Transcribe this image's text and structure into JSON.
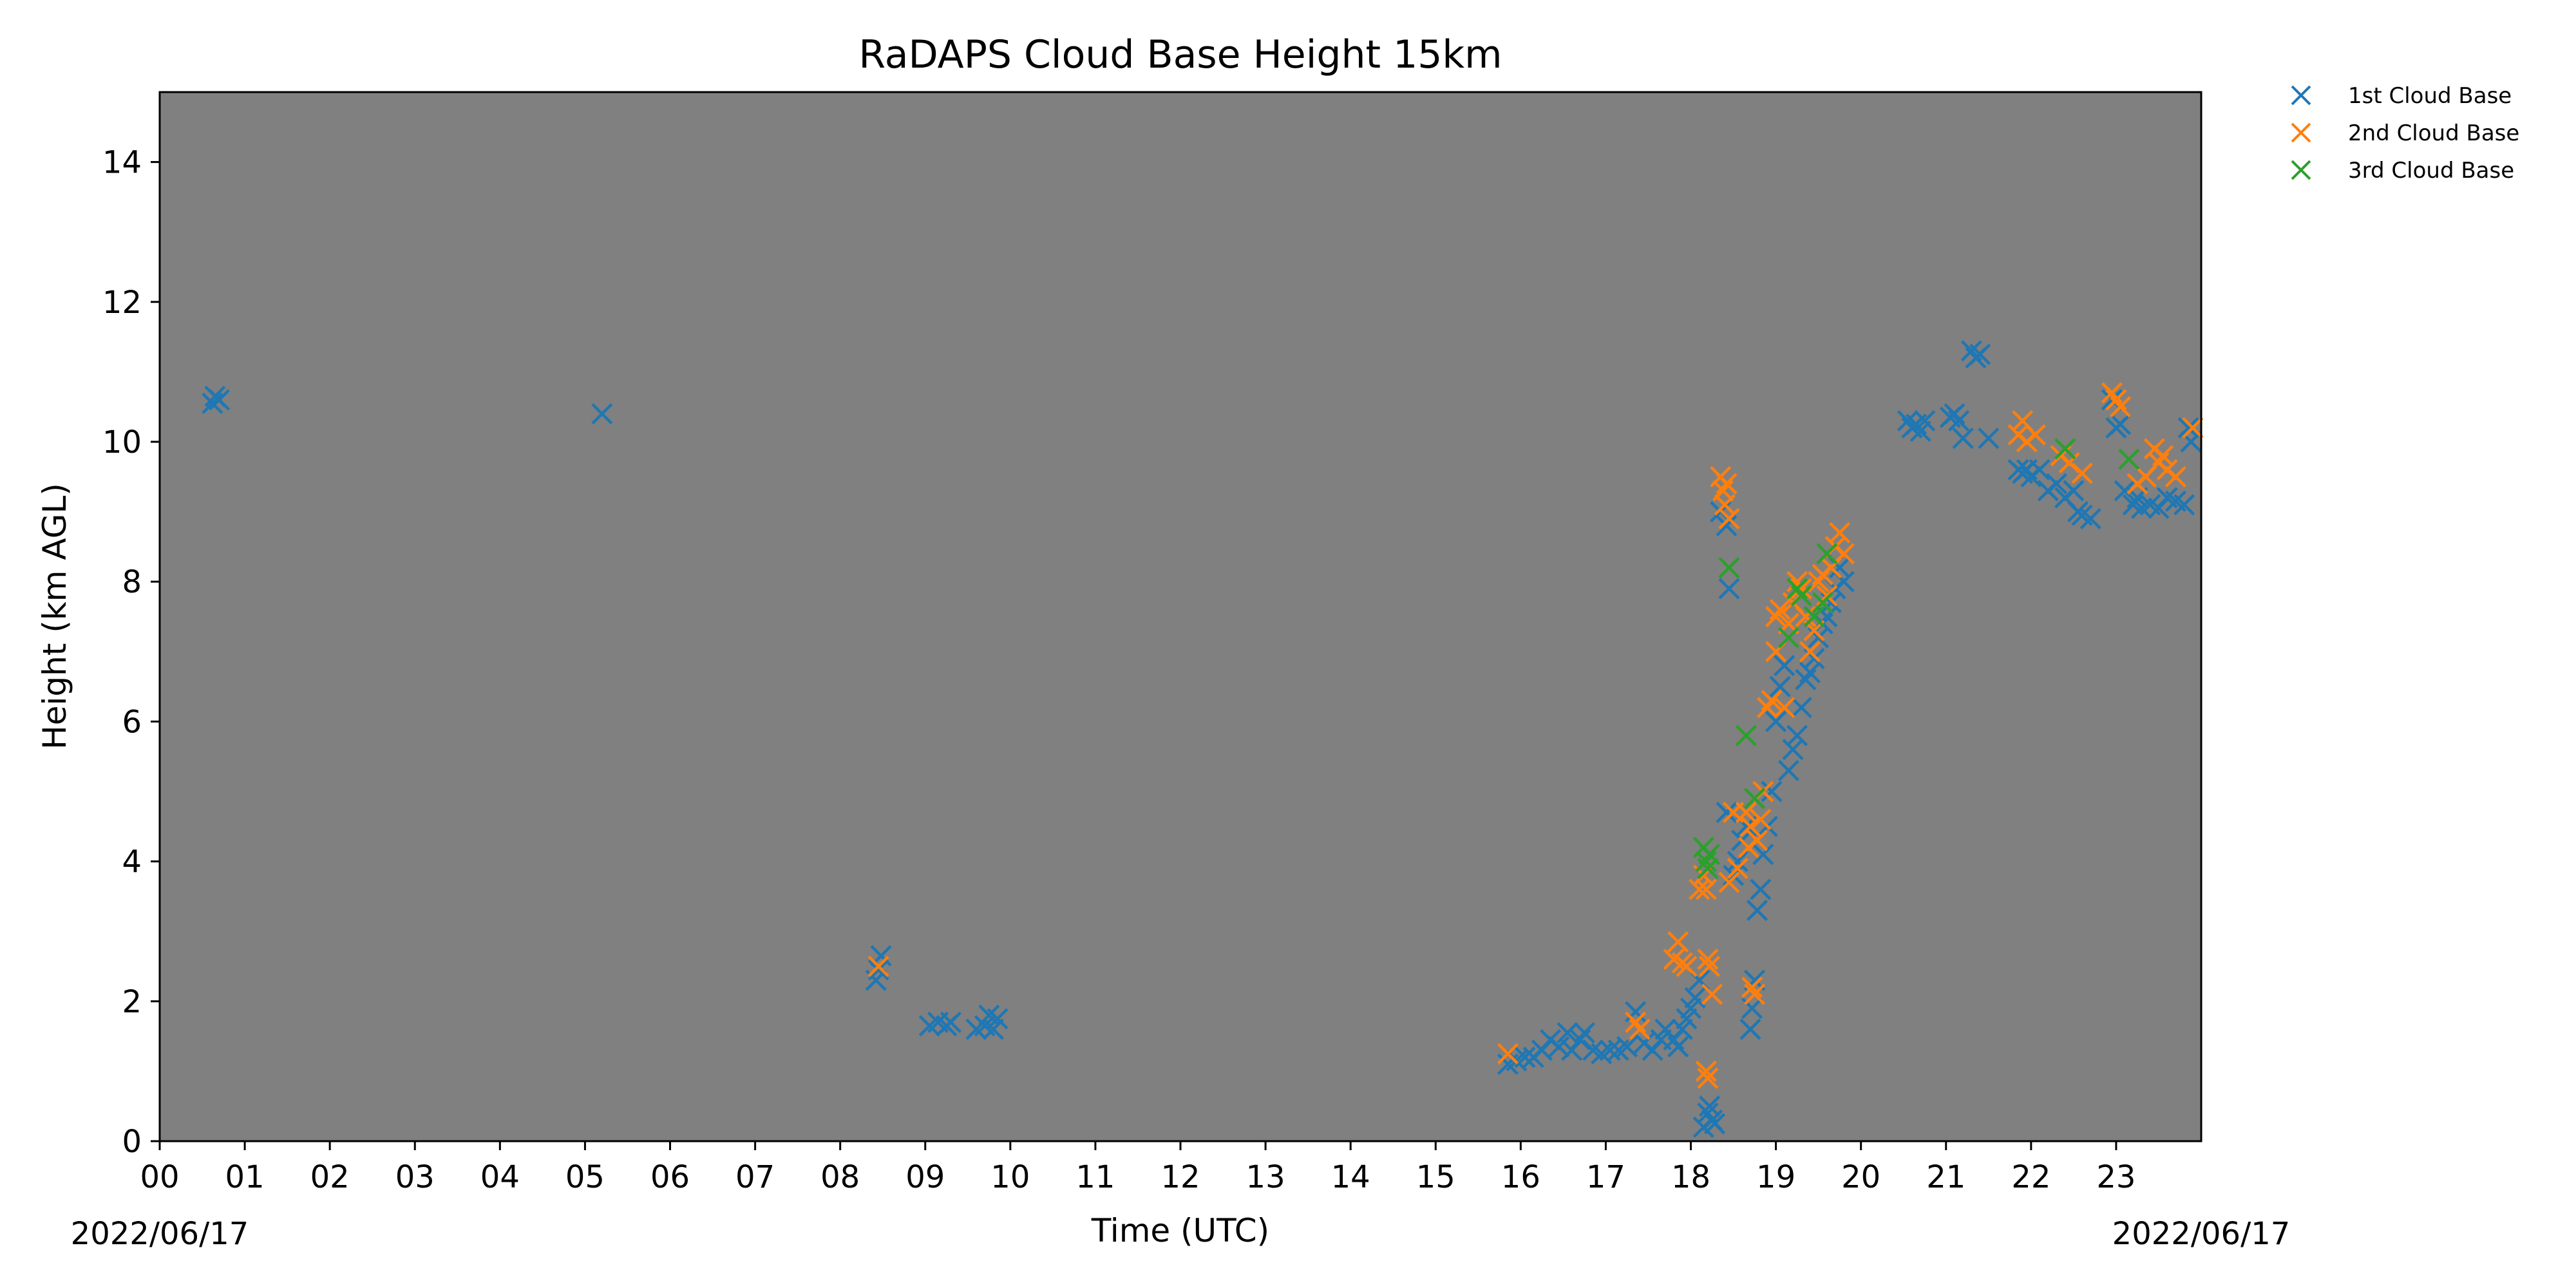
{
  "chart_data": {
    "type": "scatter",
    "title": "RaDAPS Cloud Base Height 15km",
    "xlabel": "Time (UTC)",
    "ylabel": "Height (km AGL)",
    "xlim": [
      0,
      24
    ],
    "ylim": [
      0,
      15
    ],
    "x_ticks": [
      0,
      1,
      2,
      3,
      4,
      5,
      6,
      7,
      8,
      9,
      10,
      11,
      12,
      13,
      14,
      15,
      16,
      17,
      18,
      19,
      20,
      21,
      22,
      23
    ],
    "x_tick_labels": [
      "00",
      "01",
      "02",
      "03",
      "04",
      "05",
      "06",
      "07",
      "08",
      "09",
      "10",
      "11",
      "12",
      "13",
      "14",
      "15",
      "16",
      "17",
      "18",
      "19",
      "20",
      "21",
      "22",
      "23"
    ],
    "y_ticks": [
      0,
      2,
      4,
      6,
      8,
      10,
      12,
      14
    ],
    "y_tick_labels": [
      "0",
      "2",
      "4",
      "6",
      "8",
      "10",
      "12",
      "14"
    ],
    "date_start": "2022/06/17",
    "date_end": "2022/06/17",
    "plot_background": "#808080",
    "grid": false,
    "legend_position": "outside-top-right",
    "marker": "x",
    "series": [
      {
        "name": "1st Cloud Base",
        "color": "#1f77b4",
        "points": [
          [
            0.62,
            10.55
          ],
          [
            0.65,
            10.65
          ],
          [
            0.7,
            10.6
          ],
          [
            5.2,
            10.4
          ],
          [
            8.42,
            2.3
          ],
          [
            8.45,
            2.45
          ],
          [
            8.48,
            2.65
          ],
          [
            9.05,
            1.65
          ],
          [
            9.15,
            1.7
          ],
          [
            9.25,
            1.65
          ],
          [
            9.3,
            1.7
          ],
          [
            9.6,
            1.6
          ],
          [
            9.7,
            1.65
          ],
          [
            9.75,
            1.8
          ],
          [
            9.8,
            1.6
          ],
          [
            9.85,
            1.75
          ],
          [
            15.85,
            1.1
          ],
          [
            15.95,
            1.15
          ],
          [
            16.05,
            1.2
          ],
          [
            16.15,
            1.2
          ],
          [
            16.25,
            1.3
          ],
          [
            16.35,
            1.45
          ],
          [
            16.45,
            1.35
          ],
          [
            16.55,
            1.55
          ],
          [
            16.6,
            1.3
          ],
          [
            16.7,
            1.45
          ],
          [
            16.75,
            1.55
          ],
          [
            16.85,
            1.3
          ],
          [
            16.95,
            1.25
          ],
          [
            17.05,
            1.3
          ],
          [
            17.15,
            1.3
          ],
          [
            17.25,
            1.35
          ],
          [
            17.35,
            1.85
          ],
          [
            17.45,
            1.4
          ],
          [
            17.55,
            1.3
          ],
          [
            17.65,
            1.45
          ],
          [
            17.7,
            1.6
          ],
          [
            17.8,
            1.45
          ],
          [
            17.85,
            1.35
          ],
          [
            17.9,
            1.6
          ],
          [
            17.95,
            1.75
          ],
          [
            18.0,
            1.9
          ],
          [
            18.05,
            2.05
          ],
          [
            18.1,
            2.3
          ],
          [
            18.15,
            0.2
          ],
          [
            18.2,
            0.4
          ],
          [
            18.22,
            0.5
          ],
          [
            18.25,
            0.3
          ],
          [
            18.28,
            0.25
          ],
          [
            18.35,
            9.0
          ],
          [
            18.38,
            9.3
          ],
          [
            18.42,
            8.8
          ],
          [
            18.45,
            7.9
          ],
          [
            18.42,
            4.7
          ],
          [
            18.5,
            3.8
          ],
          [
            18.55,
            4.0
          ],
          [
            18.6,
            4.3
          ],
          [
            18.65,
            4.5
          ],
          [
            18.7,
            1.6
          ],
          [
            18.75,
            2.3
          ],
          [
            18.72,
            1.9
          ],
          [
            18.78,
            3.3
          ],
          [
            18.82,
            3.6
          ],
          [
            18.85,
            4.1
          ],
          [
            18.9,
            4.5
          ],
          [
            18.95,
            5.0
          ],
          [
            19.0,
            6.0
          ],
          [
            19.05,
            6.5
          ],
          [
            19.1,
            6.8
          ],
          [
            19.15,
            5.3
          ],
          [
            19.2,
            5.6
          ],
          [
            19.25,
            5.8
          ],
          [
            19.3,
            6.2
          ],
          [
            19.35,
            6.6
          ],
          [
            19.4,
            6.7
          ],
          [
            19.45,
            6.9
          ],
          [
            19.5,
            7.2
          ],
          [
            19.55,
            7.4
          ],
          [
            19.6,
            7.5
          ],
          [
            19.65,
            7.7
          ],
          [
            19.7,
            7.9
          ],
          [
            19.75,
            8.2
          ],
          [
            19.8,
            8.0
          ],
          [
            20.55,
            10.3
          ],
          [
            20.6,
            10.2
          ],
          [
            20.65,
            10.25
          ],
          [
            20.7,
            10.15
          ],
          [
            20.75,
            10.3
          ],
          [
            21.05,
            10.35
          ],
          [
            21.1,
            10.4
          ],
          [
            21.15,
            10.3
          ],
          [
            21.2,
            10.05
          ],
          [
            21.3,
            11.3
          ],
          [
            21.35,
            11.2
          ],
          [
            21.4,
            11.25
          ],
          [
            21.5,
            10.05
          ],
          [
            21.85,
            9.6
          ],
          [
            21.9,
            9.55
          ],
          [
            21.95,
            9.6
          ],
          [
            22.0,
            9.5
          ],
          [
            22.1,
            9.6
          ],
          [
            22.2,
            9.3
          ],
          [
            22.3,
            9.4
          ],
          [
            22.4,
            9.2
          ],
          [
            22.5,
            9.3
          ],
          [
            22.55,
            9.0
          ],
          [
            22.6,
            8.95
          ],
          [
            22.7,
            8.9
          ],
          [
            22.95,
            10.6
          ],
          [
            23.0,
            10.2
          ],
          [
            23.05,
            10.25
          ],
          [
            23.1,
            9.3
          ],
          [
            23.2,
            9.1
          ],
          [
            23.25,
            9.2
          ],
          [
            23.3,
            9.05
          ],
          [
            23.4,
            9.1
          ],
          [
            23.5,
            9.05
          ],
          [
            23.6,
            9.2
          ],
          [
            23.7,
            9.15
          ],
          [
            23.8,
            9.1
          ],
          [
            23.85,
            10.2
          ],
          [
            23.88,
            10.0
          ]
        ]
      },
      {
        "name": "2nd Cloud Base",
        "color": "#ff7f0e",
        "points": [
          [
            8.45,
            2.5
          ],
          [
            15.85,
            1.25
          ],
          [
            17.35,
            1.7
          ],
          [
            17.4,
            1.6
          ],
          [
            17.8,
            2.6
          ],
          [
            17.85,
            2.85
          ],
          [
            17.9,
            2.55
          ],
          [
            17.95,
            2.5
          ],
          [
            18.1,
            3.6
          ],
          [
            18.15,
            3.8
          ],
          [
            18.18,
            3.6
          ],
          [
            18.2,
            2.6
          ],
          [
            18.22,
            2.5
          ],
          [
            18.25,
            2.1
          ],
          [
            18.18,
            1.0
          ],
          [
            18.2,
            0.9
          ],
          [
            18.35,
            9.5
          ],
          [
            18.38,
            9.3
          ],
          [
            18.4,
            9.1
          ],
          [
            18.42,
            9.4
          ],
          [
            18.45,
            8.9
          ],
          [
            18.45,
            3.7
          ],
          [
            18.5,
            4.7
          ],
          [
            18.55,
            3.9
          ],
          [
            18.65,
            4.7
          ],
          [
            18.7,
            4.5
          ],
          [
            18.68,
            4.2
          ],
          [
            18.72,
            2.2
          ],
          [
            18.75,
            2.1
          ],
          [
            18.78,
            4.3
          ],
          [
            18.82,
            4.6
          ],
          [
            18.85,
            5.0
          ],
          [
            18.9,
            6.2
          ],
          [
            18.95,
            6.3
          ],
          [
            19.0,
            7.5
          ],
          [
            19.0,
            7.0
          ],
          [
            19.05,
            7.6
          ],
          [
            19.1,
            6.2
          ],
          [
            19.15,
            7.4
          ],
          [
            19.2,
            7.7
          ],
          [
            19.25,
            8.0
          ],
          [
            19.3,
            7.9
          ],
          [
            19.35,
            7.5
          ],
          [
            19.4,
            7.0
          ],
          [
            19.45,
            7.3
          ],
          [
            19.5,
            8.0
          ],
          [
            19.55,
            8.1
          ],
          [
            19.6,
            7.8
          ],
          [
            19.65,
            8.2
          ],
          [
            19.7,
            8.5
          ],
          [
            19.75,
            8.7
          ],
          [
            19.8,
            8.4
          ],
          [
            21.85,
            10.1
          ],
          [
            21.9,
            10.3
          ],
          [
            21.95,
            10.0
          ],
          [
            22.05,
            10.1
          ],
          [
            22.35,
            9.8
          ],
          [
            22.45,
            9.7
          ],
          [
            22.6,
            9.55
          ],
          [
            22.95,
            10.7
          ],
          [
            23.0,
            10.6
          ],
          [
            23.05,
            10.5
          ],
          [
            23.25,
            9.4
          ],
          [
            23.35,
            9.5
          ],
          [
            23.45,
            9.9
          ],
          [
            23.5,
            9.7
          ],
          [
            23.55,
            9.8
          ],
          [
            23.6,
            9.6
          ],
          [
            23.7,
            9.5
          ],
          [
            23.9,
            10.2
          ]
        ]
      },
      {
        "name": "3rd Cloud Base",
        "color": "#2ca02c",
        "points": [
          [
            18.15,
            4.2
          ],
          [
            18.18,
            4.0
          ],
          [
            18.2,
            3.9
          ],
          [
            18.22,
            4.1
          ],
          [
            18.45,
            8.2
          ],
          [
            18.65,
            5.8
          ],
          [
            18.75,
            4.9
          ],
          [
            19.15,
            7.2
          ],
          [
            19.25,
            7.9
          ],
          [
            19.3,
            7.8
          ],
          [
            19.45,
            7.5
          ],
          [
            19.55,
            7.7
          ],
          [
            19.6,
            8.4
          ],
          [
            22.4,
            9.9
          ],
          [
            23.15,
            9.75
          ]
        ]
      }
    ]
  }
}
